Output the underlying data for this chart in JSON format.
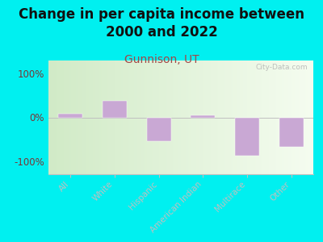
{
  "title": "Change in per capita income between\n2000 and 2022",
  "subtitle": "Gunnison, UT",
  "categories": [
    "All",
    "White",
    "Hispanic",
    "American Indian",
    "Multirace",
    "Other"
  ],
  "values": [
    8,
    38,
    -55,
    5,
    -88,
    -68
  ],
  "bar_color": "#c9a8d4",
  "bar_edgecolor": "#c9a8d4",
  "background_outer": "#00f0f0",
  "plot_bg_left": "#d8efd0",
  "plot_bg_right": "#f5faf0",
  "title_fontsize": 12,
  "subtitle_fontsize": 10,
  "subtitle_color": "#a04848",
  "title_color": "#111111",
  "tick_label_color": "#7a3535",
  "ylim": [
    -130,
    130
  ],
  "yticks": [
    -100,
    0,
    100
  ],
  "ytick_labels": [
    "-100%",
    "0%",
    "100%"
  ],
  "watermark": "City-Data.com"
}
